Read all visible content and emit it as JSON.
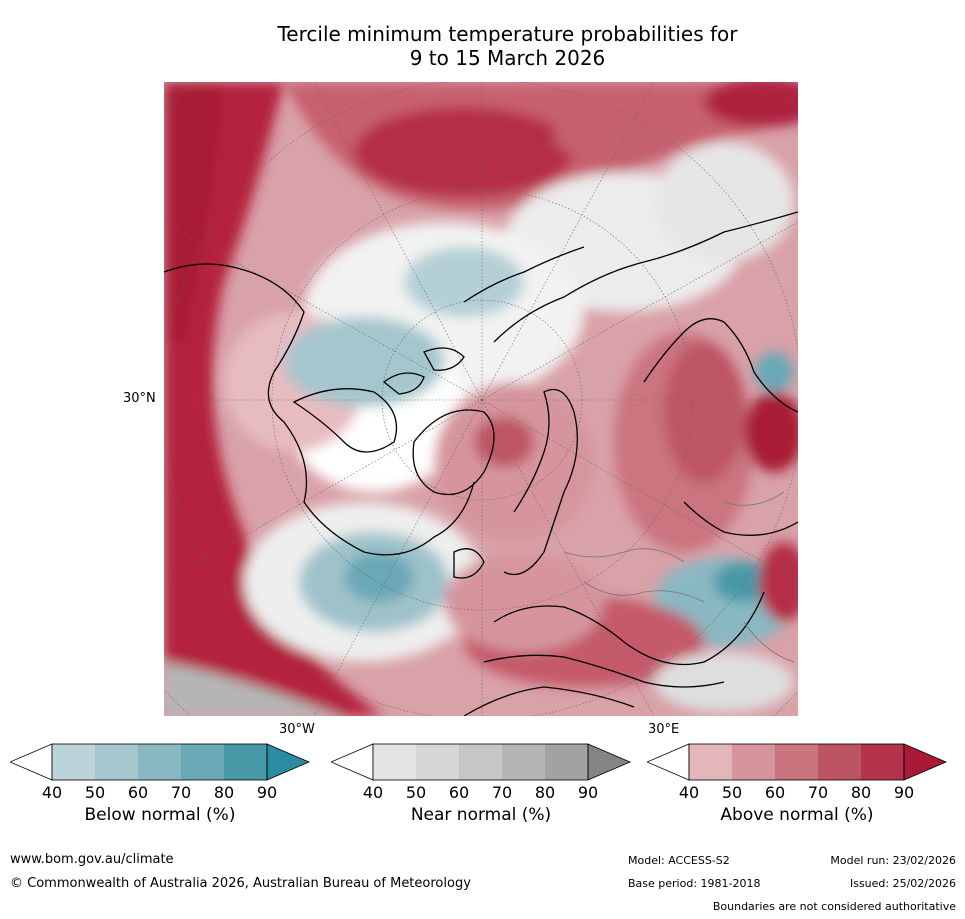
{
  "title": {
    "line1": "Tercile minimum temperature probabilities for",
    "line2": "9 to 15 March 2026"
  },
  "map": {
    "label_30n": "30°N",
    "label_30w": "30°W",
    "label_30e": "30°E"
  },
  "colorbars": [
    {
      "name": "below",
      "title": "Below normal (%)",
      "ticks": [
        "40",
        "50",
        "60",
        "70",
        "80",
        "90"
      ],
      "colors": [
        "#ffffff",
        "#bcd4d9",
        "#a5c6cd",
        "#8ab8c2",
        "#6aa8b5",
        "#4799a8",
        "#2a8ca0"
      ]
    },
    {
      "name": "near",
      "title": "Near normal (%)",
      "ticks": [
        "40",
        "50",
        "60",
        "70",
        "80",
        "90"
      ],
      "colors": [
        "#ffffff",
        "#e4e4e4",
        "#d6d6d6",
        "#c6c6c6",
        "#b5b5b5",
        "#a2a2a2",
        "#848484"
      ]
    },
    {
      "name": "above",
      "title": "Above normal (%)",
      "ticks": [
        "40",
        "50",
        "60",
        "70",
        "80",
        "90"
      ],
      "colors": [
        "#ffffff",
        "#e2b6bb",
        "#d6959d",
        "#ca7480",
        "#bd5464",
        "#b2334b",
        "#a91a36"
      ]
    }
  ],
  "footer": {
    "website": "www.bom.gov.au/climate",
    "copyright": "© Commonwealth of Australia 2026, Australian Bureau of Meteorology",
    "model": "Model: ACCESS-S2",
    "base_period": "Base period: 1981-2018",
    "model_run": "Model run: 23/02/2026",
    "issued": "Issued: 25/02/2026",
    "boundaries": "Boundaries are not considered authoritative"
  }
}
